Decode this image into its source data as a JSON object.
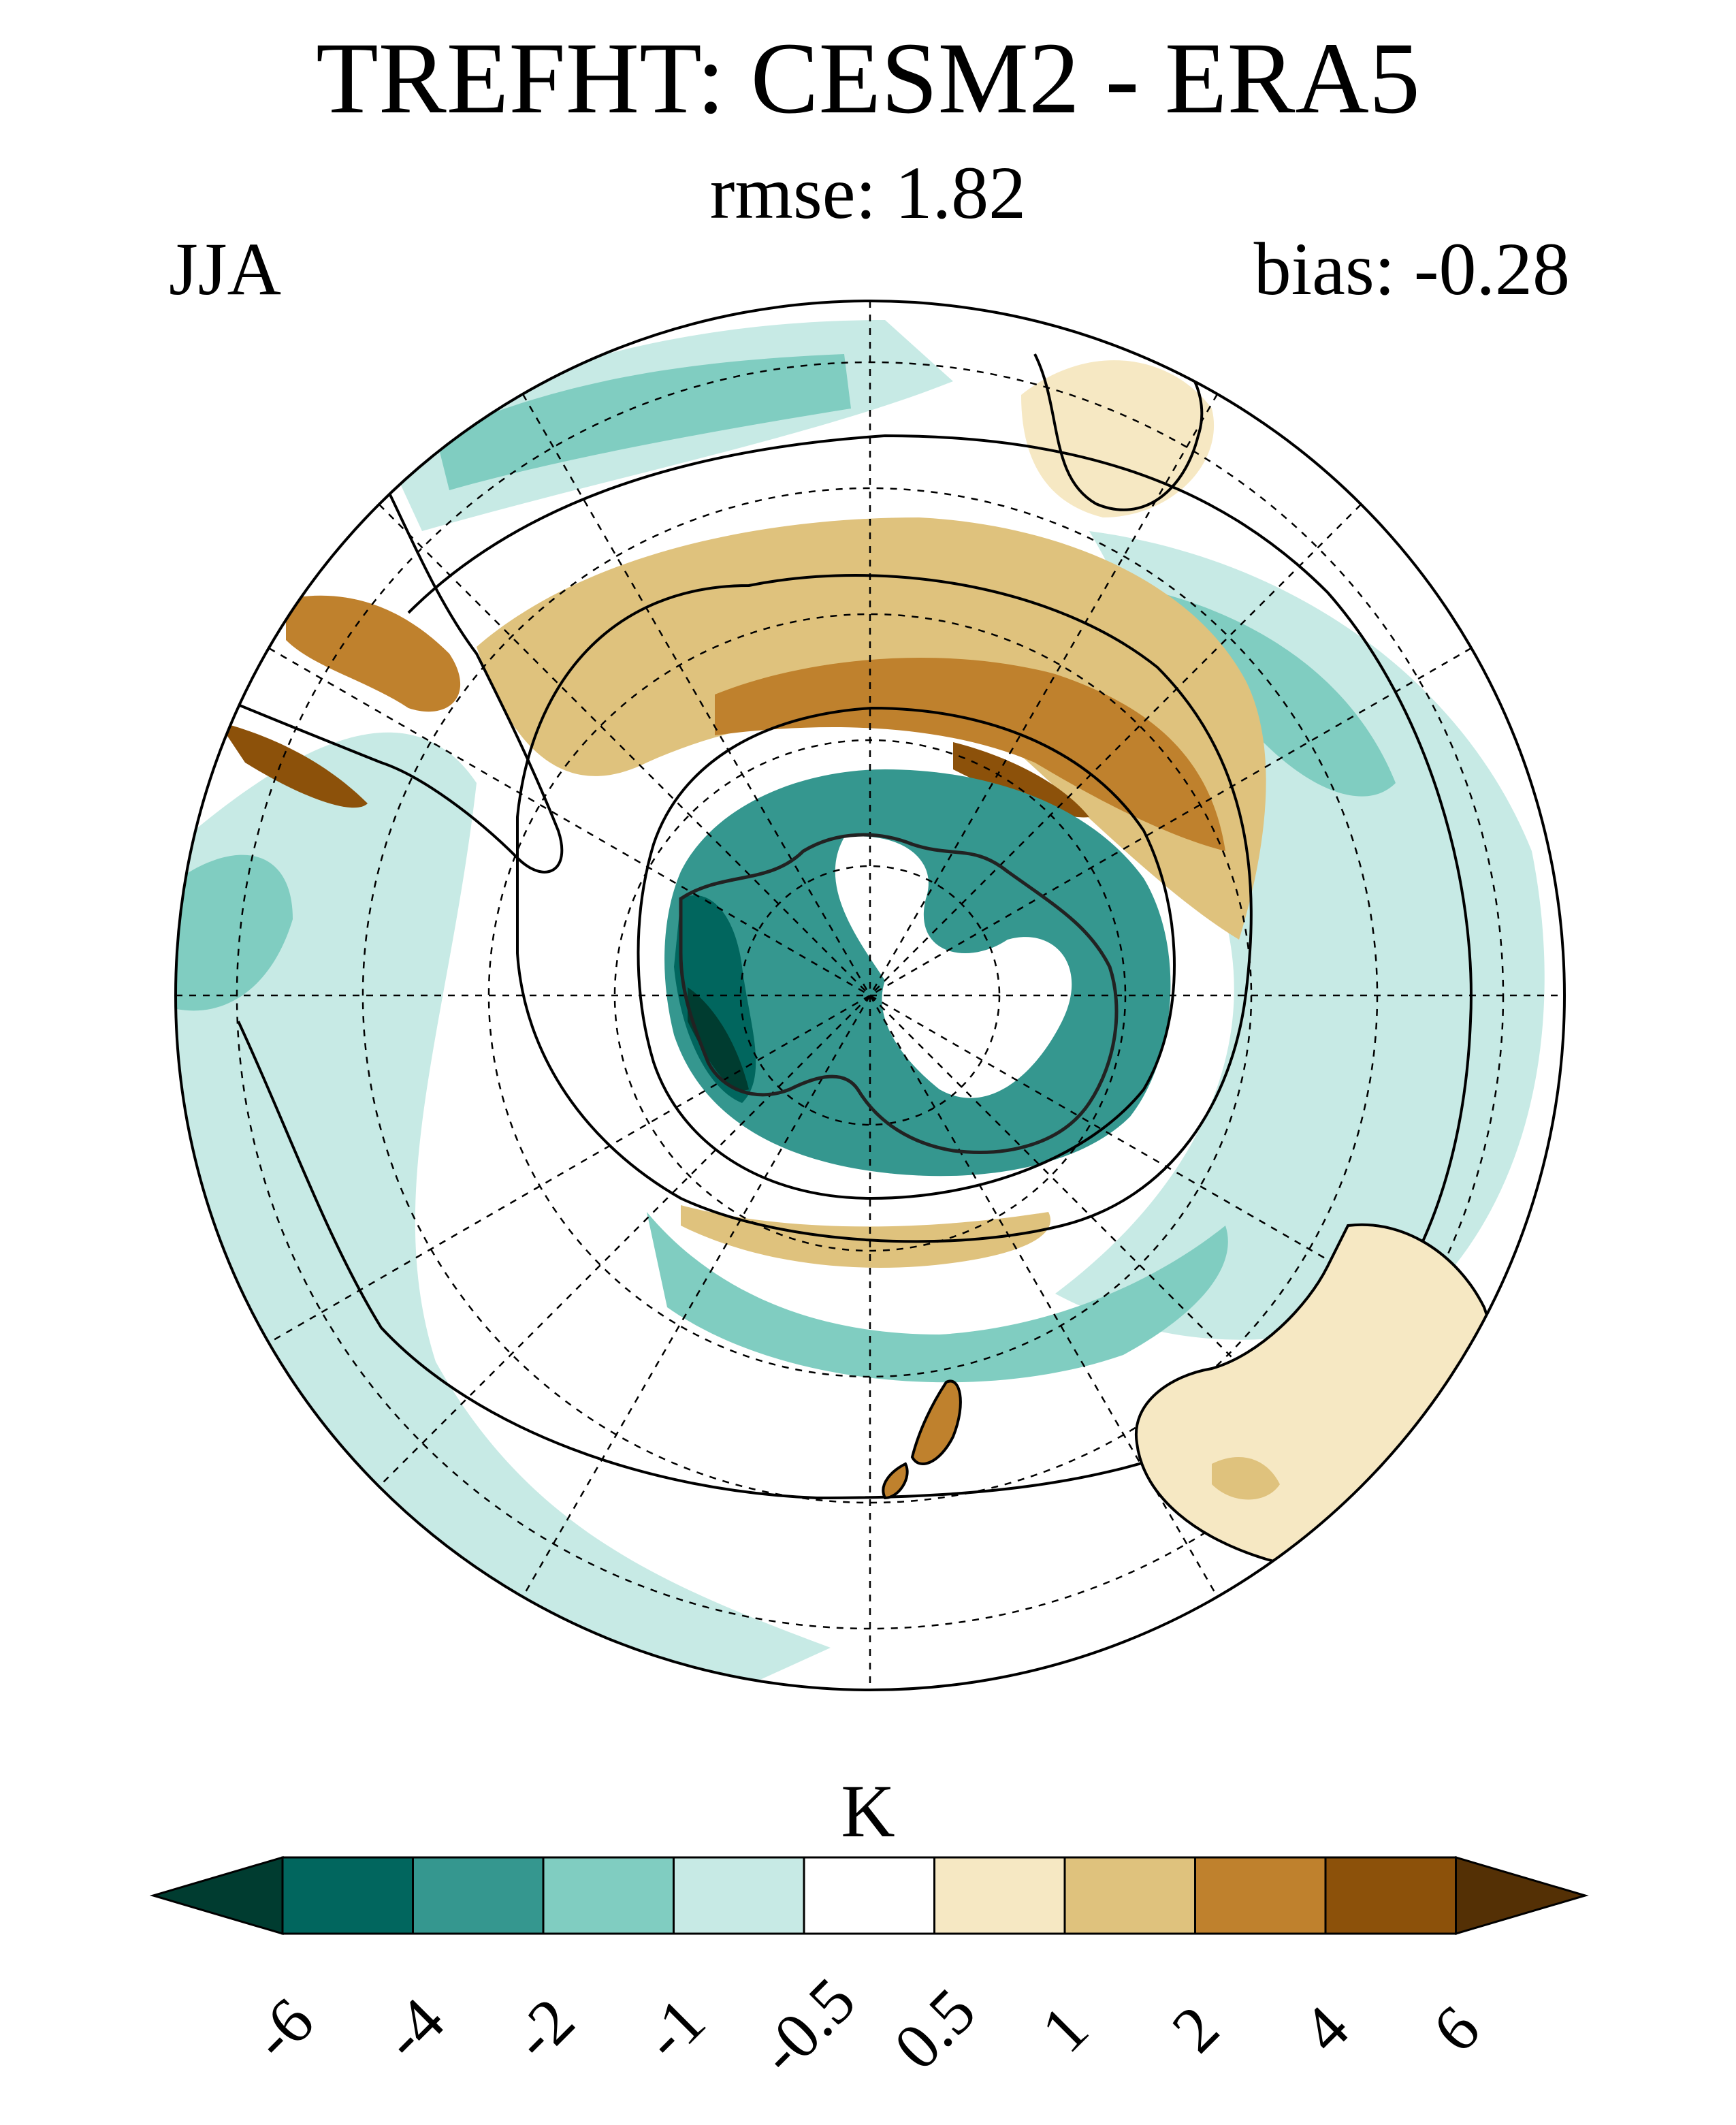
{
  "header": {
    "title": "TREFHT: CESM2 - ERA5",
    "rmse_label": "rmse: 1.82",
    "season": "JJA",
    "bias_label": "bias: -0.28"
  },
  "map": {
    "projection": "south polar stereographic",
    "variable": "TREFHT",
    "rmse": 1.82,
    "bias": -0.28,
    "features": [
      {
        "region": "antarctica-interior",
        "level": -4
      },
      {
        "region": "antarctic-peninsula-west",
        "level": -6
      },
      {
        "region": "east-antarctica-plateau",
        "level": 0.5
      },
      {
        "region": "pacific-sector-sea-ice",
        "level": 4
      },
      {
        "region": "south-america-south",
        "level": 2
      },
      {
        "region": "africa-south",
        "level": 1
      },
      {
        "region": "australia-south",
        "level": 1
      },
      {
        "region": "new-zealand",
        "level": 2
      },
      {
        "region": "southern-ocean-midlatitude",
        "level": -1
      }
    ]
  },
  "colorbar": {
    "units": "K",
    "levels": [
      "-6",
      "-4",
      "-2",
      "-1",
      "-0.5",
      "0.5",
      "1",
      "2",
      "4",
      "6"
    ],
    "colors": [
      "#003c30",
      "#01665e",
      "#35978f",
      "#80cdc1",
      "#c7eae5",
      "#ffffff",
      "#f6e8c3",
      "#dfc27d",
      "#bf812d",
      "#8c510a",
      "#543005"
    ]
  }
}
